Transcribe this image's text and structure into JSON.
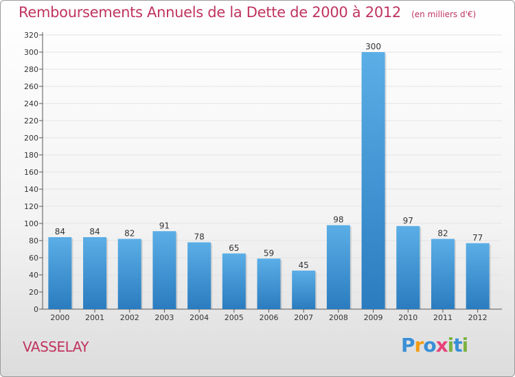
{
  "title": "Remboursements Annuels de la Dette de 2000 à 2012",
  "unit_note": "(en milliers d'€)",
  "commune": "VASSELAY",
  "logo": {
    "text": "Proxiti",
    "letters": [
      "P",
      "r",
      "o",
      "x",
      "i",
      "t",
      "i"
    ],
    "colors": [
      "#3a8fd6",
      "#f39c12",
      "#3a8fd6",
      "#e8417a",
      "#7cb342",
      "#3a8fd6",
      "#7cb342"
    ]
  },
  "colors": {
    "bar_top": "#5baee6",
    "bar_bottom": "#2a7cbf",
    "title": "#c0335f",
    "grid": "#e3e3e3"
  },
  "chart_data": {
    "type": "bar",
    "title": "Remboursements Annuels de la Dette de 2000 à 2012",
    "xlabel": "",
    "ylabel": "",
    "ylim": [
      0,
      320
    ],
    "ytick_step": 20,
    "grid": true,
    "categories": [
      "2000",
      "2001",
      "2002",
      "2003",
      "2004",
      "2005",
      "2006",
      "2007",
      "2008",
      "2009",
      "2010",
      "2011",
      "2012"
    ],
    "values": [
      84,
      84,
      82,
      91,
      78,
      65,
      59,
      45,
      98,
      300,
      97,
      82,
      77
    ]
  }
}
